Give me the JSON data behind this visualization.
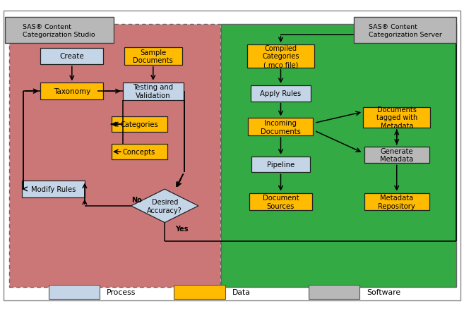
{
  "fig_width": 6.57,
  "fig_height": 4.52,
  "left_bg": "#cc7777",
  "right_bg": "#33aa44",
  "left_label": "SAS® Content\nCategorization Studio",
  "right_label": "SAS® Content\nCategorization Server",
  "process_color": "#c5d5e8",
  "data_color": "#ffbb00",
  "software_color": "#b8b8b8",
  "legend_items": [
    {
      "label": "Process",
      "color": "#c5d5e8"
    },
    {
      "label": "Data",
      "color": "#ffbb00"
    },
    {
      "label": "Software",
      "color": "#b8b8b8"
    }
  ]
}
